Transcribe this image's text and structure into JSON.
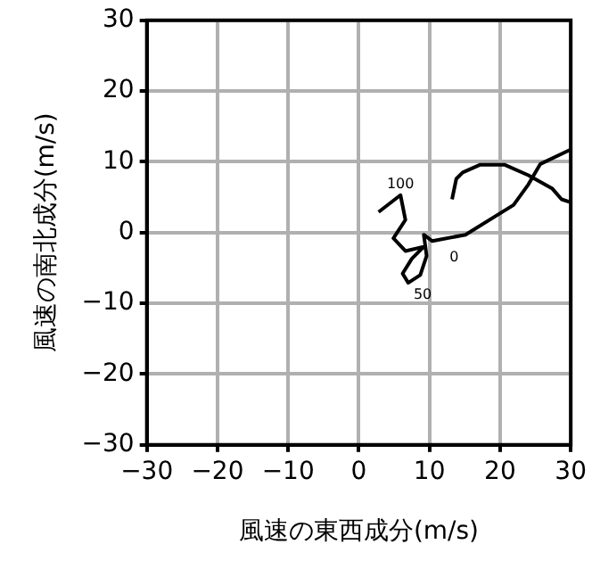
{
  "chart_data": {
    "type": "line",
    "xlabel": "風速の東西成分(m/s)",
    "ylabel": "風速の南北成分(m/s)",
    "series": [
      {
        "color": "#000000",
        "x": [
          2.8,
          5.9,
          6.6,
          4.9,
          6.6,
          9.2,
          7.5,
          6.2,
          7,
          8.7,
          9.6,
          9.2,
          10.4,
          15.1,
          21.9,
          24,
          25.7,
          29.9
        ],
        "values": [
          2.9,
          5.3,
          1.8,
          -0.8,
          -2.6,
          -2,
          -3.7,
          -5.8,
          -7.1,
          -6,
          -3.3,
          -0.3,
          -1.2,
          -0.3,
          3.9,
          6.8,
          9.7,
          11.7
        ]
      },
      {
        "color": "#000000",
        "x": [
          13.2,
          13.8,
          14.7,
          17.2,
          20.6,
          24,
          27.4,
          28.7,
          29.9
        ],
        "values": [
          4.7,
          7.6,
          8.5,
          9.6,
          9.6,
          8.1,
          6.2,
          4.7,
          4.3
        ]
      }
    ],
    "annotations": [
      {
        "text": "100",
        "x": 5.9,
        "y": 5.3
      },
      {
        "text": "50",
        "x": 7,
        "y": -7.1
      },
      {
        "text": "0",
        "x": 12.1,
        "y": -1.8
      }
    ],
    "xlim": [
      -30,
      30
    ],
    "ylim": [
      -30,
      30
    ],
    "xticks": [
      -30,
      -20,
      -10,
      0,
      10,
      20,
      30
    ],
    "yticks": [
      -30,
      -20,
      -10,
      0,
      10,
      20,
      30
    ],
    "grid": true,
    "marker": "none",
    "line_style": "solid",
    "legend": false
  }
}
